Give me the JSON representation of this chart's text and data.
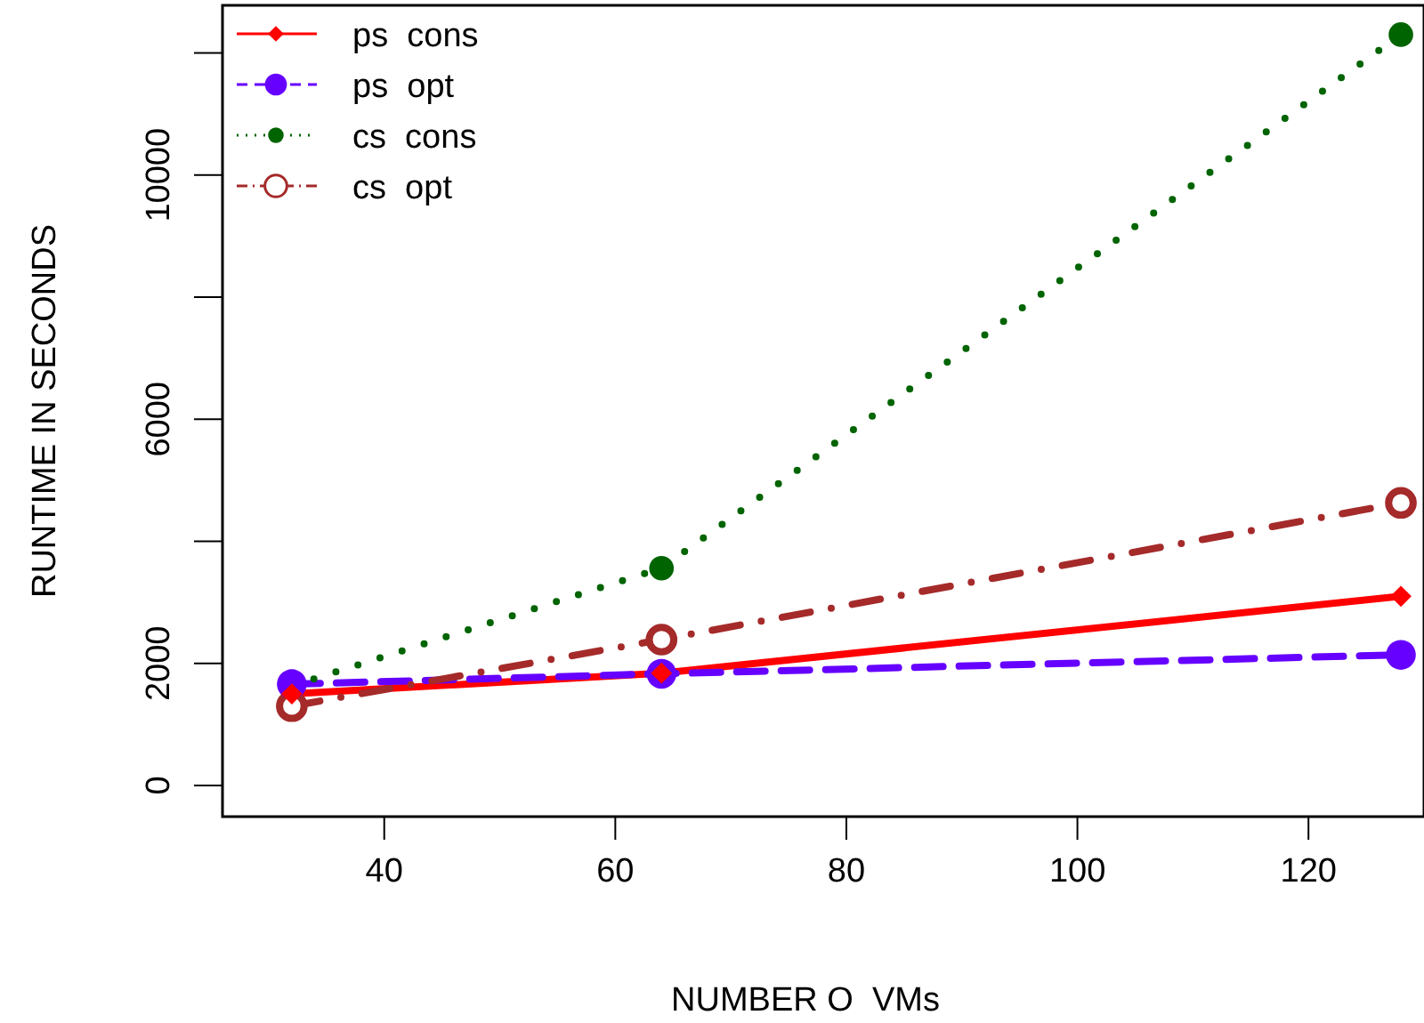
{
  "chart_data": {
    "type": "line",
    "xlabel": "NUMBER O  VMs",
    "ylabel": "RUNTIME IN SECONDS",
    "x": [
      32,
      64,
      128
    ],
    "xlim": [
      26,
      130
    ],
    "xticks": [
      40,
      60,
      80,
      100,
      120
    ],
    "ylim": [
      -510,
      12780
    ],
    "yticks": [
      0,
      2000,
      {
        "value": 4000,
        "label": null
      },
      6000,
      {
        "value": 8000,
        "label": null
      },
      10000,
      {
        "value": 12000,
        "label": null
      }
    ],
    "legend": "top left",
    "grid": false,
    "series": [
      {
        "name": "ps  cons",
        "color": "#ff0000",
        "values": [
          1500,
          1840,
          3100
        ],
        "line_style": "solid",
        "marker": "diamond"
      },
      {
        "name": "ps  opt",
        "color": "#6600ff",
        "values": [
          1660,
          1830,
          2140
        ],
        "line_style": "dashed",
        "marker": "circle"
      },
      {
        "name": "cs  cons",
        "color": "#006400",
        "values": [
          1630,
          3560,
          12300
        ],
        "line_style": "dotted",
        "marker": "circle"
      },
      {
        "name": "cs  opt",
        "color": "#a52a2a",
        "values": [
          1300,
          2390,
          4630
        ],
        "line_style": "dashdot",
        "marker": "circle-open"
      }
    ]
  }
}
